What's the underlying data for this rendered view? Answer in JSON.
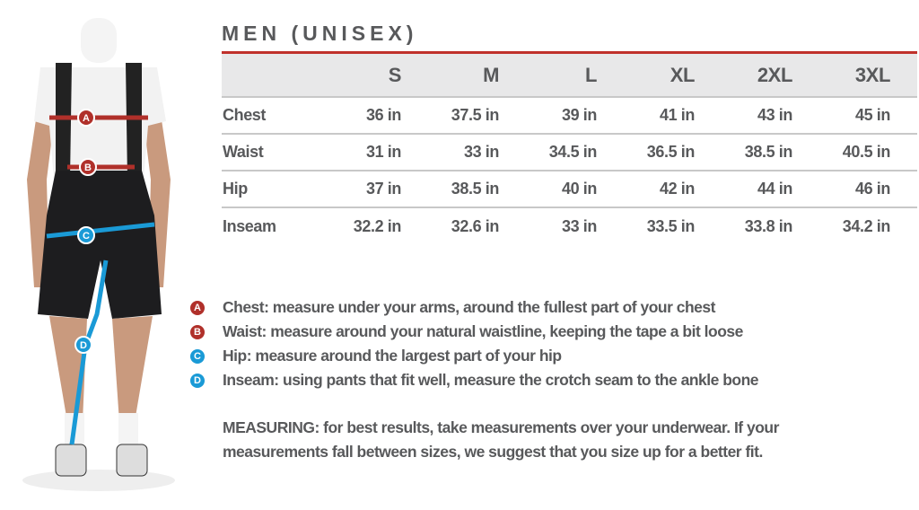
{
  "title": "MEN (UNISEX)",
  "colors": {
    "accent_red": "#c0312b",
    "accent_blue": "#1a9ad6",
    "text": "#58595b",
    "header_bg": "#e8e8e9"
  },
  "table": {
    "columns": [
      "S",
      "M",
      "L",
      "XL",
      "2XL",
      "3XL"
    ],
    "rows": [
      {
        "label": "Chest",
        "values": [
          "36 in",
          "37.5 in",
          "39 in",
          "41 in",
          "43 in",
          "45 in"
        ]
      },
      {
        "label": "Waist",
        "values": [
          "31 in",
          "33 in",
          "34.5 in",
          "36.5 in",
          "38.5 in",
          "40.5 in"
        ]
      },
      {
        "label": "Hip",
        "values": [
          "37 in",
          "38.5 in",
          "40 in",
          "42 in",
          "44 in",
          "46 in"
        ]
      },
      {
        "label": "Inseam",
        "values": [
          "32.2 in",
          "32.6 in",
          "33 in",
          "33.5 in",
          "33.8 in",
          "34.2 in"
        ]
      }
    ]
  },
  "legend": [
    {
      "letter": "A",
      "color": "#b0302a",
      "text": "Chest:  measure under your arms, around the fullest part of your chest"
    },
    {
      "letter": "B",
      "color": "#b0302a",
      "text": "Waist:  measure around your natural waistline, keeping the tape a bit loose"
    },
    {
      "letter": "C",
      "color": "#1a9ad6",
      "text": "Hip:  measure around the largest part of your hip"
    },
    {
      "letter": "D",
      "color": "#1a9ad6",
      "text": "Inseam:  using pants that fit well, measure the crotch seam to the ankle bone"
    }
  ],
  "note": "MEASURING: for best results, take measurements over your underwear. If your measurements fall between sizes, we suggest that you size up for a better fit.",
  "figure": {
    "markers": [
      "A",
      "B",
      "C",
      "D"
    ]
  }
}
